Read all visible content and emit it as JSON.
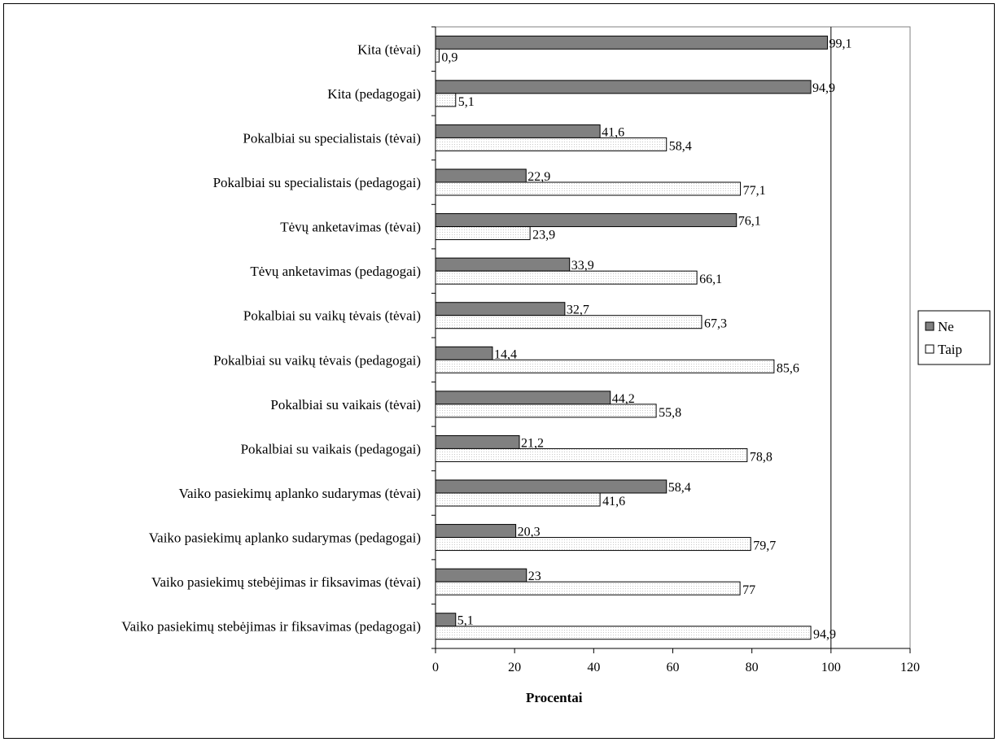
{
  "chart_data": {
    "type": "bar",
    "orientation": "horizontal",
    "categories": [
      "Kita (tėvai)",
      "Kita (pedagogai)",
      "Pokalbiai su specialistais (tėvai)",
      "Pokalbiai su specialistais (pedagogai)",
      "Tėvų anketavimas (tėvai)",
      "Tėvų anketavimas (pedagogai)",
      "Pokalbiai su vaikų tėvais (tėvai)",
      "Pokalbiai su vaikų tėvais (pedagogai)",
      "Pokalbiai su vaikais (tėvai)",
      "Pokalbiai su vaikais (pedagogai)",
      "Vaiko pasiekimų aplanko sudarymas (tėvai)",
      "Vaiko pasiekimų aplanko sudarymas (pedagogai)",
      "Vaiko pasiekimų stebėjimas ir fiksavimas (tėvai)",
      "Vaiko pasiekimų stebėjimas ir fiksavimas (pedagogai)"
    ],
    "series": [
      {
        "name": "Ne",
        "color": "#808080",
        "values": [
          99.1,
          94.9,
          41.6,
          22.9,
          76.1,
          33.9,
          32.7,
          14.4,
          44.2,
          21.2,
          58.4,
          20.3,
          23,
          5.1
        ],
        "labels": [
          "99,1",
          "94,9",
          "41,6",
          "22,9",
          "76,1",
          "33,9",
          "32,7",
          "14,4",
          "44,2",
          "21,2",
          "58,4",
          "20,3",
          "23",
          "5,1"
        ]
      },
      {
        "name": "Taip",
        "color": "#ffffff",
        "values": [
          0.9,
          5.1,
          58.4,
          77.1,
          23.9,
          66.1,
          67.3,
          85.6,
          55.8,
          78.8,
          41.6,
          79.7,
          77,
          94.9
        ],
        "labels": [
          "0,9",
          "5,1",
          "58,4",
          "77,1",
          "23,9",
          "66,1",
          "67,3",
          "85,6",
          "55,8",
          "78,8",
          "41,6",
          "79,7",
          "77",
          "94,9"
        ]
      }
    ],
    "xlabel": "Procentai",
    "ylabel": "",
    "xlim": [
      0,
      120
    ],
    "xticks": [
      0,
      20,
      40,
      60,
      80,
      100,
      120
    ],
    "grid": "vertical lines at 100",
    "legend": "right"
  }
}
